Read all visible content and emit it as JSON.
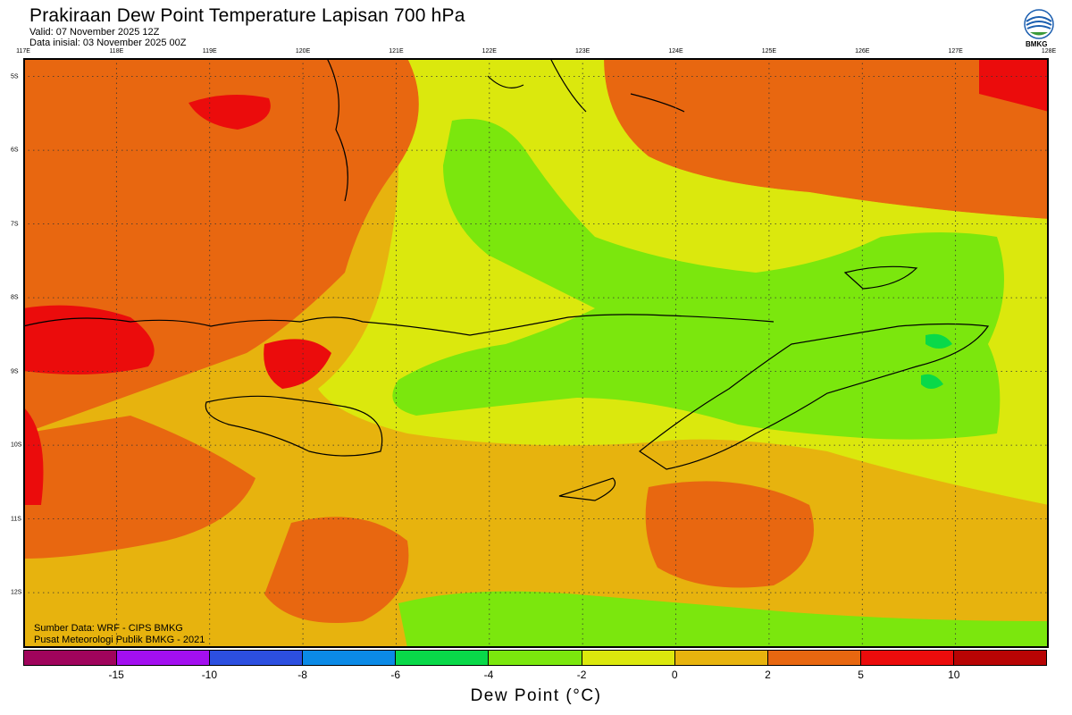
{
  "header": {
    "title": "Prakiraan Dew Point Temperature Lapisan 700 hPa",
    "valid": "Valid: 07 November 2025 12Z",
    "init": "Data inisial: 03 November 2025 00Z"
  },
  "logo": {
    "text": "BMKG",
    "icon": "bmkg-logo-icon"
  },
  "map": {
    "lon_labels": [
      "117E",
      "118E",
      "119E",
      "120E",
      "121E",
      "122E",
      "123E",
      "124E",
      "125E",
      "126E",
      "127E",
      "128E"
    ],
    "lat_labels": [
      "5S",
      "6S",
      "7S",
      "8S",
      "9S",
      "10S",
      "11S",
      "12S"
    ],
    "lon_range": [
      117,
      128
    ],
    "lat_range": [
      -4.75,
      -12.75
    ],
    "grid": true
  },
  "source": {
    "line1": "Sumber Data: WRF - CIPS BMKG",
    "line2": "Pusat Meteorologi Publik BMKG - 2021"
  },
  "colorbar": {
    "colors": [
      "#a0045c",
      "#a30ff0",
      "#2c4fe0",
      "#0b8ae6",
      "#09d949",
      "#7be70d",
      "#dbe80d",
      "#e7b30e",
      "#e86710",
      "#eb0c0c",
      "#b80404"
    ],
    "ticks": [
      "-15",
      "-10",
      "-8",
      "-6",
      "-4",
      "-2",
      "0",
      "2",
      "5",
      "10"
    ],
    "title": "Dew Point (°C)"
  }
}
